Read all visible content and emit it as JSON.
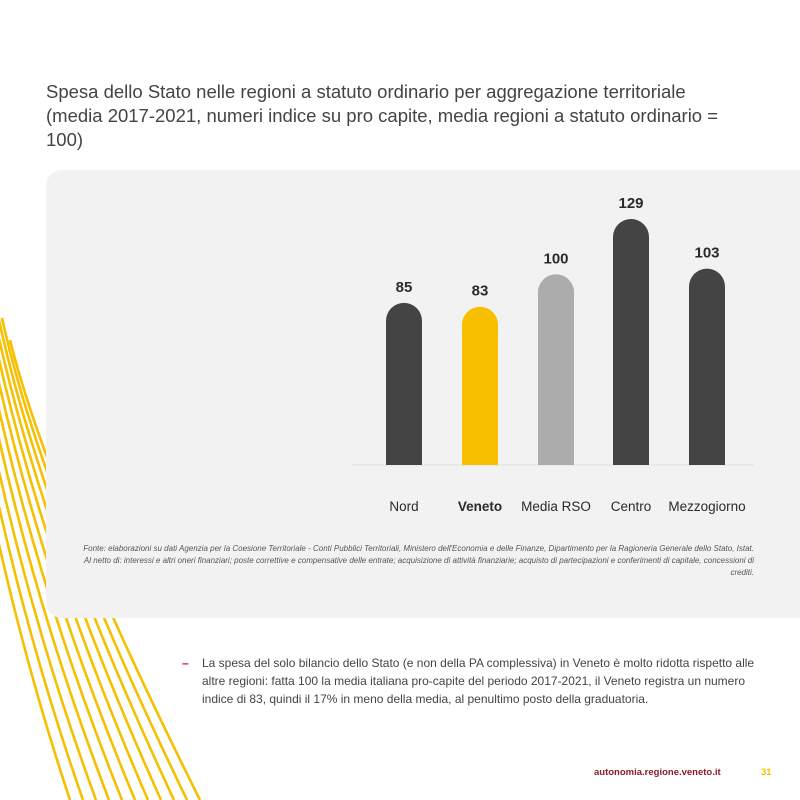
{
  "title": "Spesa dello Stato nelle regioni a statuto ordinario per aggregazione territoriale (media 2017-2021, numeri indice su pro capite, media regioni a statuto ordinario = 100)",
  "chart_data": {
    "type": "bar",
    "title": "",
    "xlabel": "",
    "ylabel": "",
    "categories": [
      "Nord",
      "Veneto",
      "Media RSO",
      "Centro",
      "Mezzogiorno"
    ],
    "values": [
      85,
      83,
      100,
      129,
      103
    ],
    "bar_colors": [
      "#444444",
      "#f6c000",
      "#acacac",
      "#444444",
      "#444444"
    ],
    "highlighted_category": "Veneto",
    "ylim": [
      0,
      129
    ],
    "grid": false,
    "legend": "none"
  },
  "source": {
    "line1": "Fonte: elaborazioni su dati Agenzia per la Coesione Territoriale - Conti Pubblici Territoriali, Ministero dell'Economia e delle Finanze, Dipartimento per la Ragioneria Generale dello Stato, Istat.",
    "line2": "Al netto di: interessi e altri oneri finanziari; poste correttive e compensative delle entrate; acquisizione di attività finanziarie; acquisto di partecipazioni e conferimenti di capitale, concessioni di crediti."
  },
  "bullet": {
    "marker": "–",
    "text": "La spesa del solo bilancio dello Stato (e non della PA complessiva) in Veneto è molto ridotta rispetto alle altre regioni: fatta 100 la media italiana pro-capite del periodo 2017-2021, il Veneto registra un numero indice di 83, quindi il 17% in meno della media, al penultimo posto della graduatoria."
  },
  "footer": {
    "url": "autonomia.regione.veneto.it",
    "page_number": "31"
  },
  "colors": {
    "accent_yellow": "#f6c000",
    "dark_bar": "#444444",
    "average_bar": "#acacac",
    "footer_url": "#8a1c2e",
    "bullet_marker": "#c8102e"
  }
}
